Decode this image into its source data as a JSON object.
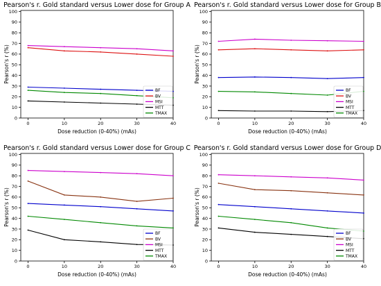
{
  "chart_data": [
    {
      "type": "line",
      "title": "Pearson's r. Gold standard versus Lower dose for Group A",
      "xlabel": "Dose reduction (0-40%) (mAs)",
      "ylabel": "Pearson's r (%)",
      "x": [
        0,
        10,
        20,
        30,
        40
      ],
      "xticks": [
        0,
        10,
        20,
        30,
        40
      ],
      "yticks": [
        0,
        10,
        20,
        30,
        40,
        50,
        60,
        70,
        80,
        90,
        100
      ],
      "xlim": [
        -2,
        40
      ],
      "ylim": [
        0,
        101
      ],
      "legend": "lower-right",
      "series": [
        {
          "name": "BF",
          "color": "#0000cc",
          "values": [
            29,
            28,
            27,
            26,
            25
          ]
        },
        {
          "name": "BV",
          "color": "#dd1111",
          "values": [
            66,
            63,
            62,
            60,
            58
          ]
        },
        {
          "name": "MSI",
          "color": "#cc00cc",
          "values": [
            68,
            67,
            66,
            65,
            63
          ]
        },
        {
          "name": "MTT",
          "color": "#000000",
          "values": [
            16,
            15,
            14,
            13,
            12
          ]
        },
        {
          "name": "TMAX",
          "color": "#008800",
          "values": [
            26,
            24,
            23,
            21,
            19
          ]
        }
      ]
    },
    {
      "type": "line",
      "title": "Pearson's r. Gold standard versus Lower dose for Group B",
      "xlabel": "Dose reduction (0-40%) (mAs)",
      "ylabel": "Pearson's r (%)",
      "x": [
        0,
        10,
        20,
        30,
        40
      ],
      "xticks": [
        0,
        10,
        20,
        30,
        40
      ],
      "yticks": [
        0,
        10,
        20,
        30,
        40,
        50,
        60,
        70,
        80,
        90,
        100
      ],
      "xlim": [
        -2,
        40
      ],
      "ylim": [
        0,
        101
      ],
      "legend": "lower-right",
      "series": [
        {
          "name": "BF",
          "color": "#0000cc",
          "values": [
            38,
            38.5,
            38,
            37,
            38
          ]
        },
        {
          "name": "BV",
          "color": "#dd1111",
          "values": [
            64,
            65,
            64,
            63,
            64
          ]
        },
        {
          "name": "MSI",
          "color": "#cc00cc",
          "values": [
            72,
            74,
            73,
            72.5,
            72
          ]
        },
        {
          "name": "MTT",
          "color": "#000000",
          "values": [
            7,
            6.5,
            6.5,
            6,
            7
          ]
        },
        {
          "name": "TMAX",
          "color": "#008800",
          "values": [
            25,
            24.5,
            23,
            21.5,
            25
          ]
        }
      ]
    },
    {
      "type": "line",
      "title": "Pearson's r. Gold standard versus Lower dose for Group C",
      "xlabel": "Dose reduction (0-40%) (mAs)",
      "ylabel": "Pearson's r (%)",
      "x": [
        0,
        10,
        20,
        30,
        40
      ],
      "xticks": [
        0,
        10,
        20,
        30,
        40
      ],
      "yticks": [
        0,
        10,
        20,
        30,
        40,
        50,
        60,
        70,
        80,
        90,
        100
      ],
      "xlim": [
        -2,
        40
      ],
      "ylim": [
        0,
        101
      ],
      "legend": "lower-right",
      "series": [
        {
          "name": "BF",
          "color": "#0000cc",
          "values": [
            54,
            52.5,
            51,
            49,
            47
          ]
        },
        {
          "name": "BV",
          "color": "#883311",
          "values": [
            75,
            62,
            60,
            56,
            59
          ]
        },
        {
          "name": "MSI",
          "color": "#cc00cc",
          "values": [
            85,
            84,
            83,
            82,
            80
          ]
        },
        {
          "name": "MTT",
          "color": "#000000",
          "values": [
            29,
            20,
            18,
            15.5,
            15
          ]
        },
        {
          "name": "TMAX",
          "color": "#008800",
          "values": [
            42,
            39,
            36,
            33,
            31
          ]
        }
      ]
    },
    {
      "type": "line",
      "title": "Pearson's r. Gold standard versus Lower dose for Group D",
      "xlabel": "Dose reduction (0-40%) (mAs)",
      "ylabel": "Pearson's r (%)",
      "x": [
        0,
        10,
        20,
        30,
        40
      ],
      "xticks": [
        0,
        10,
        20,
        30,
        40
      ],
      "yticks": [
        0,
        10,
        20,
        30,
        40,
        50,
        60,
        70,
        80,
        90,
        100
      ],
      "xlim": [
        -2,
        40
      ],
      "ylim": [
        0,
        101
      ],
      "legend": "lower-right",
      "series": [
        {
          "name": "BF",
          "color": "#0000cc",
          "values": [
            53,
            51,
            49,
            47,
            45
          ]
        },
        {
          "name": "BV",
          "color": "#883311",
          "values": [
            73,
            67,
            66,
            64,
            62
          ]
        },
        {
          "name": "MSI",
          "color": "#cc00cc",
          "values": [
            81,
            80,
            79,
            78,
            76
          ]
        },
        {
          "name": "MTT",
          "color": "#000000",
          "values": [
            31,
            27,
            25,
            23,
            21
          ]
        },
        {
          "name": "TMAX",
          "color": "#008800",
          "values": [
            42,
            39,
            36,
            31,
            28
          ]
        }
      ]
    }
  ]
}
